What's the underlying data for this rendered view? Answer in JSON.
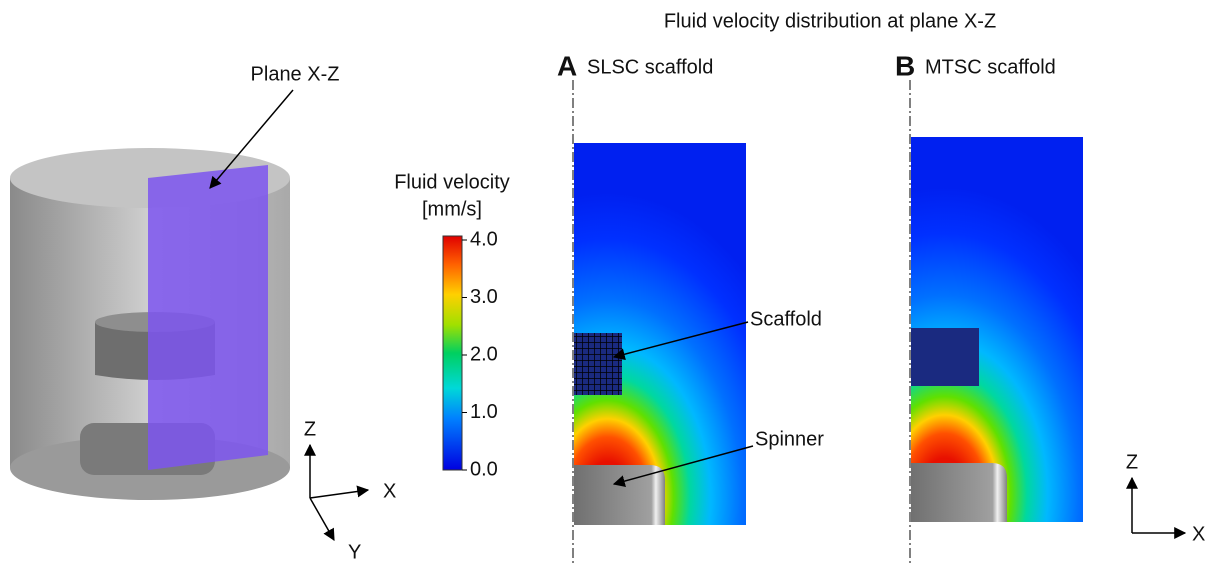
{
  "title": "Fluid velocity distribution at plane X-Z",
  "setup": {
    "plane_label": "Plane X-Z",
    "axes": [
      "Z",
      "X",
      "Y"
    ]
  },
  "colorbar": {
    "title": "Fluid velocity",
    "unit": "[mm/s]",
    "range": [
      0,
      4
    ],
    "ticks": [
      {
        "value": 4,
        "label": "4.0"
      },
      {
        "value": 3,
        "label": "3.0"
      },
      {
        "value": 2,
        "label": "2.0"
      },
      {
        "value": 1,
        "label": "1.0"
      },
      {
        "value": 0,
        "label": "0.0"
      }
    ]
  },
  "panels": [
    {
      "letter": "A",
      "label": "SLSC scaffold",
      "annotations": [
        "Scaffold",
        "Spinner"
      ]
    },
    {
      "letter": "B",
      "label": "MTSC scaffold"
    }
  ],
  "right_axes": [
    "Z",
    "X"
  ]
}
